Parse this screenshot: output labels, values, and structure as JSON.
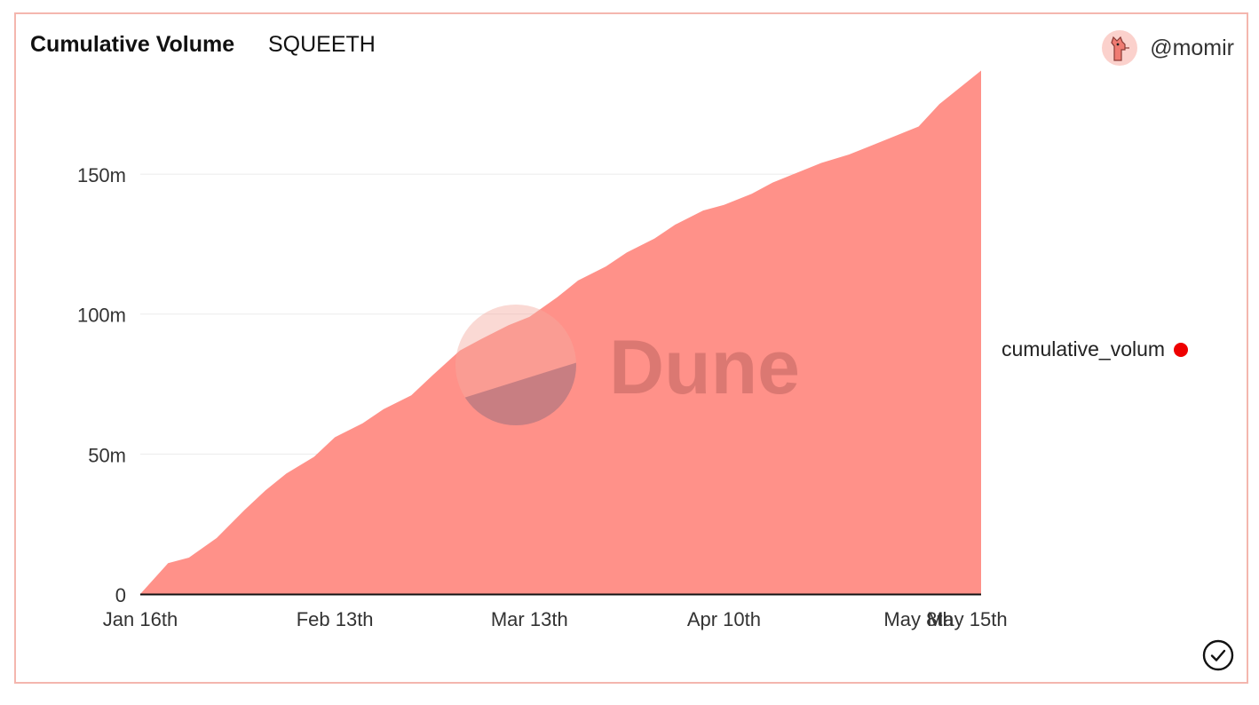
{
  "header": {
    "title": "Cumulative Volume",
    "subtitle": "SQUEETH",
    "username": "@momir"
  },
  "watermark": {
    "text": "Dune"
  },
  "colors": {
    "area": "#ff9189",
    "legend_dot": "#ee0000",
    "border": "#f4b6ae"
  },
  "icons": {
    "avatar": "llama-avatar-icon",
    "status": "check-circle-icon"
  },
  "chart_data": {
    "type": "area",
    "xlabel": "",
    "ylabel": "",
    "ylim": [
      0,
      190000000
    ],
    "yticks": [
      {
        "value": 0,
        "label": "0"
      },
      {
        "value": 50000000,
        "label": "50m"
      },
      {
        "value": 100000000,
        "label": "100m"
      },
      {
        "value": 150000000,
        "label": "150m"
      }
    ],
    "xlim": [
      "2022-01-16",
      "2022-05-17"
    ],
    "xticks": [
      {
        "date": "2022-01-16",
        "label": "Jan 16th"
      },
      {
        "date": "2022-02-13",
        "label": "Feb 13th"
      },
      {
        "date": "2022-03-13",
        "label": "Mar 13th"
      },
      {
        "date": "2022-04-10",
        "label": "Apr 10th"
      },
      {
        "date": "2022-05-08",
        "label": "May 8th"
      },
      {
        "date": "2022-05-15",
        "label": "May 15th"
      }
    ],
    "grid": true,
    "legend_position": "right",
    "series": [
      {
        "name": "cumulative_volum",
        "x": [
          "2022-01-16",
          "2022-01-20",
          "2022-01-23",
          "2022-01-27",
          "2022-01-31",
          "2022-02-03",
          "2022-02-06",
          "2022-02-10",
          "2022-02-13",
          "2022-02-17",
          "2022-02-20",
          "2022-02-24",
          "2022-02-27",
          "2022-03-03",
          "2022-03-06",
          "2022-03-10",
          "2022-03-13",
          "2022-03-17",
          "2022-03-20",
          "2022-03-24",
          "2022-03-27",
          "2022-03-31",
          "2022-04-03",
          "2022-04-07",
          "2022-04-10",
          "2022-04-14",
          "2022-04-17",
          "2022-04-21",
          "2022-04-24",
          "2022-04-28",
          "2022-05-01",
          "2022-05-05",
          "2022-05-08",
          "2022-05-11",
          "2022-05-15",
          "2022-05-17"
        ],
        "values": [
          0,
          11000000,
          13000000,
          20000000,
          30000000,
          37000000,
          43000000,
          49000000,
          56000000,
          61000000,
          66000000,
          71000000,
          78000000,
          87000000,
          91000000,
          96000000,
          99000000,
          106000000,
          112000000,
          117000000,
          122000000,
          127000000,
          132000000,
          137000000,
          139000000,
          143000000,
          147000000,
          151000000,
          154000000,
          157000000,
          160000000,
          164000000,
          167000000,
          175000000,
          183000000,
          187000000
        ]
      }
    ]
  }
}
